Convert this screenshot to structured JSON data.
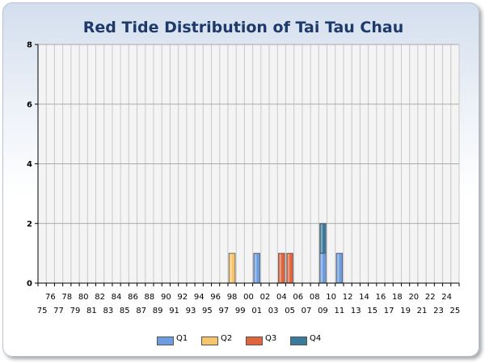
{
  "chart_data": {
    "type": "bar",
    "title": "Red Tide Distribution of Tai Tau Chau",
    "xlabel": "",
    "ylabel": "",
    "ylim": [
      0,
      8
    ],
    "yticks": [
      0,
      2,
      4,
      6,
      8
    ],
    "grid": true,
    "legend_placement": "bottom-center",
    "categories": [
      "75",
      "76",
      "77",
      "78",
      "79",
      "80",
      "81",
      "82",
      "83",
      "84",
      "85",
      "86",
      "87",
      "88",
      "89",
      "90",
      "91",
      "92",
      "93",
      "94",
      "95",
      "96",
      "97",
      "98",
      "99",
      "00",
      "01",
      "02",
      "03",
      "04",
      "05",
      "06",
      "07",
      "08",
      "09",
      "10",
      "11",
      "12",
      "13",
      "14",
      "15",
      "16",
      "17",
      "18",
      "19",
      "20",
      "21",
      "22",
      "23",
      "24",
      "25"
    ],
    "stacked": true,
    "series": [
      {
        "name": "Q1",
        "color": "#6b9de0",
        "values": [
          0,
          0,
          0,
          0,
          0,
          0,
          0,
          0,
          0,
          0,
          0,
          0,
          0,
          0,
          0,
          0,
          0,
          0,
          0,
          0,
          0,
          0,
          0,
          0,
          0,
          0,
          1,
          0,
          0,
          0,
          0,
          0,
          0,
          0,
          1,
          0,
          1,
          0,
          0,
          0,
          0,
          0,
          0,
          0,
          0,
          0,
          0,
          0,
          0,
          0,
          0
        ]
      },
      {
        "name": "Q2",
        "color": "#f6c46b",
        "values": [
          0,
          0,
          0,
          0,
          0,
          0,
          0,
          0,
          0,
          0,
          0,
          0,
          0,
          0,
          0,
          0,
          0,
          0,
          0,
          0,
          0,
          0,
          0,
          1,
          0,
          0,
          0,
          0,
          0,
          0,
          0,
          0,
          0,
          0,
          0,
          0,
          0,
          0,
          0,
          0,
          0,
          0,
          0,
          0,
          0,
          0,
          0,
          0,
          0,
          0,
          0
        ]
      },
      {
        "name": "Q3",
        "color": "#e0653d",
        "values": [
          0,
          0,
          0,
          0,
          0,
          0,
          0,
          0,
          0,
          0,
          0,
          0,
          0,
          0,
          0,
          0,
          0,
          0,
          0,
          0,
          0,
          0,
          0,
          0,
          0,
          0,
          0,
          0,
          0,
          1,
          1,
          0,
          0,
          0,
          0,
          0,
          0,
          0,
          0,
          0,
          0,
          0,
          0,
          0,
          0,
          0,
          0,
          0,
          0,
          0,
          0
        ]
      },
      {
        "name": "Q4",
        "color": "#3a7a9c",
        "values": [
          0,
          0,
          0,
          0,
          0,
          0,
          0,
          0,
          0,
          0,
          0,
          0,
          0,
          0,
          0,
          0,
          0,
          0,
          0,
          0,
          0,
          0,
          0,
          0,
          0,
          0,
          0,
          0,
          0,
          0,
          0,
          0,
          0,
          0,
          1,
          0,
          0,
          0,
          0,
          0,
          0,
          0,
          0,
          0,
          0,
          0,
          0,
          0,
          0,
          0,
          0
        ]
      }
    ]
  }
}
